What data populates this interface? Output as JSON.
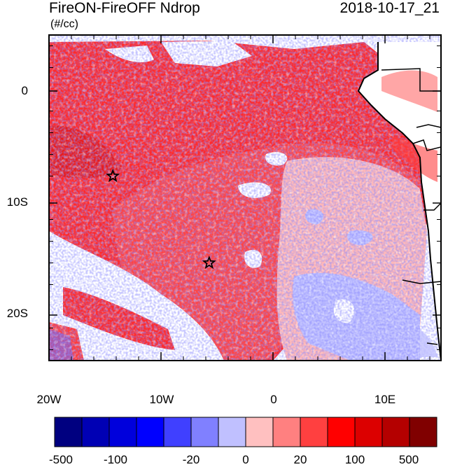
{
  "title": {
    "left": "FireON-FireOFF Ndrop",
    "right": "2018-10-17_21",
    "units": "(#/cc)"
  },
  "map": {
    "lon_range": [
      -20,
      15
    ],
    "lat_range": [
      -25,
      5
    ],
    "lon_ticks": [
      "20W",
      "10W",
      "0",
      "10E"
    ],
    "lat_ticks": [
      "0",
      "10S",
      "20S"
    ],
    "star_markers": [
      {
        "lon": -14.3,
        "lat": -8.0
      },
      {
        "lon": -5.7,
        "lat": -16.0
      }
    ],
    "colors": {
      "land_outline": "#000000",
      "ocean": "#ffffff"
    }
  },
  "colorbar": {
    "labels": [
      "-500",
      "-100",
      "-20",
      "0",
      "20",
      "100",
      "500"
    ],
    "colors": [
      "#000080",
      "#0000b4",
      "#0000dc",
      "#0000ff",
      "#4040ff",
      "#8080ff",
      "#c0c0ff",
      "#ffc0c0",
      "#ff8080",
      "#ff4040",
      "#ff0000",
      "#dc0000",
      "#b40000",
      "#800000"
    ]
  }
}
